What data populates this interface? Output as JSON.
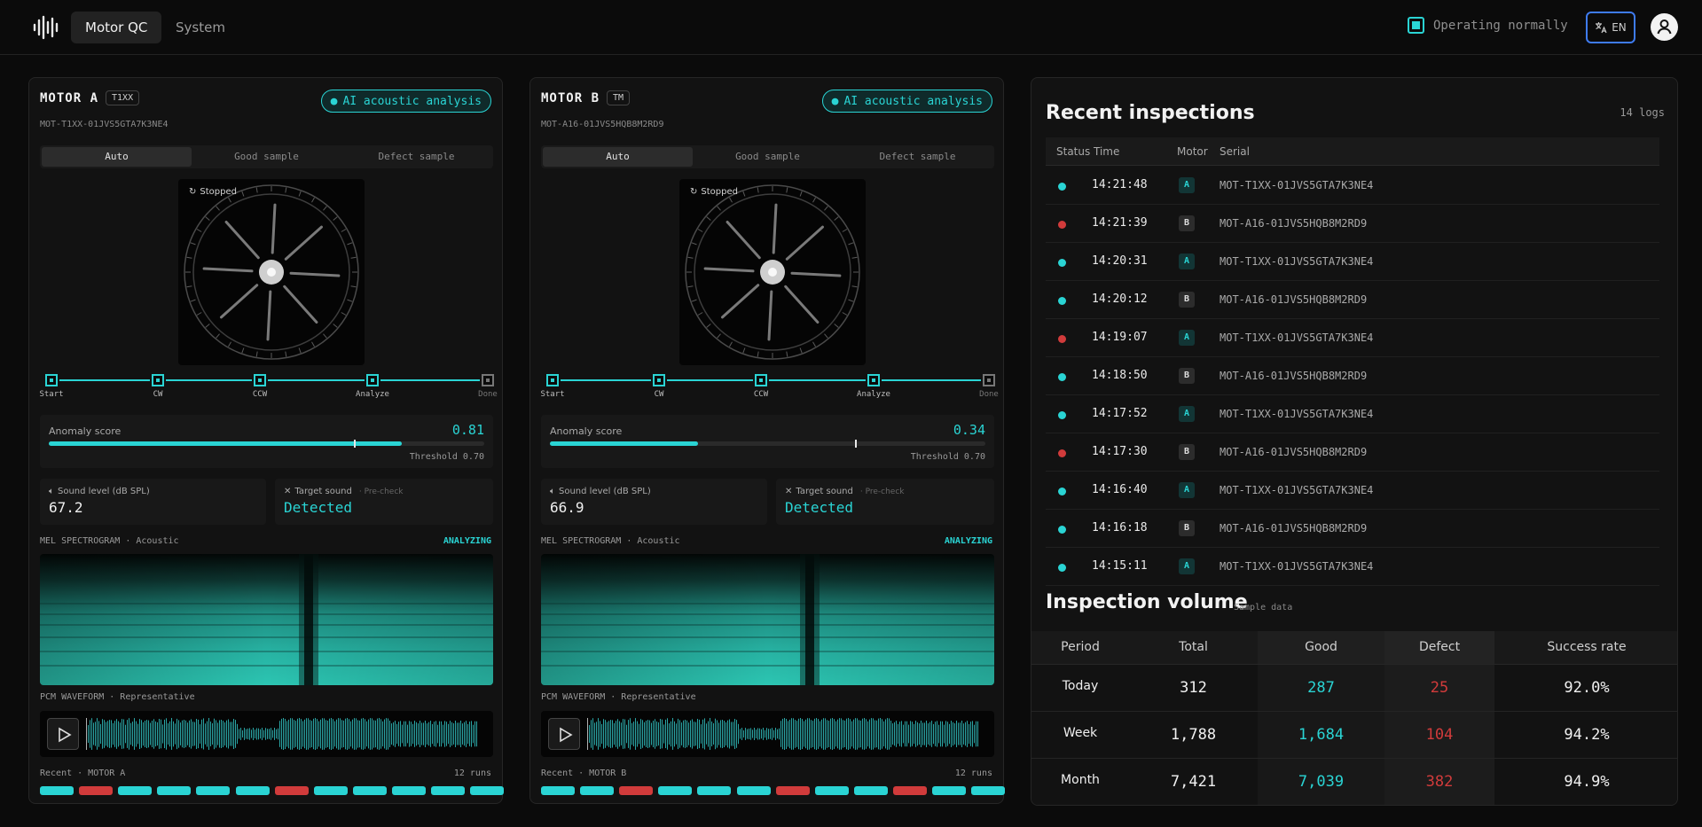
{
  "nav": {
    "tabs": [
      "Motor QC",
      "System"
    ]
  },
  "status": {
    "text": "Operating normally",
    "color": "#2ad4d4"
  },
  "lang": {
    "label": "EN"
  },
  "colors": {
    "accent": "#2ad4d4",
    "defect": "#d13b3b",
    "good": "#2ad4d4"
  },
  "motors": [
    {
      "title": "MOTOR A",
      "tag": "T1XX",
      "ai_badge": "AI acoustic analysis",
      "serial": "MOT-T1XX-01JVS5GTA7K3NE4",
      "modes": [
        "Auto",
        "Good sample",
        "Defect sample"
      ],
      "active_mode": "Auto",
      "rotor_state": "Stopped",
      "steps": [
        "Start",
        "CW",
        "CCW",
        "Analyze",
        "Done"
      ],
      "anomaly_label": "Anomaly score",
      "anomaly_score": "0.81",
      "anomaly_fraction": 0.81,
      "threshold_label": "Threshold 0.70",
      "threshold": 0.7,
      "sound_label": "Sound level (dB SPL)",
      "sound_value": "67.2",
      "target_label": "Target sound",
      "target_sub": "· Pre-check",
      "target_value": "Detected",
      "spectro_label": "MEL SPECTROGRAM · Acoustic",
      "spectro_status": "ANALYZING",
      "wave_label": "PCM WAVEFORM · Representative",
      "recent_label": "Recent · MOTOR A",
      "runs_label": "12 runs",
      "runs": [
        "good",
        "defect",
        "good",
        "good",
        "good",
        "good",
        "defect",
        "good",
        "good",
        "good",
        "good",
        "good"
      ]
    },
    {
      "title": "MOTOR B",
      "tag": "TM",
      "ai_badge": "AI acoustic analysis",
      "serial": "MOT-A16-01JVS5HQB8M2RD9",
      "modes": [
        "Auto",
        "Good sample",
        "Defect sample"
      ],
      "active_mode": "Auto",
      "rotor_state": "Stopped",
      "steps": [
        "Start",
        "CW",
        "CCW",
        "Analyze",
        "Done"
      ],
      "anomaly_label": "Anomaly score",
      "anomaly_score": "0.34",
      "anomaly_fraction": 0.34,
      "threshold_label": "Threshold 0.70",
      "threshold": 0.7,
      "sound_label": "Sound level (dB SPL)",
      "sound_value": "66.9",
      "target_label": "Target sound",
      "target_sub": "· Pre-check",
      "target_value": "Detected",
      "spectro_label": "MEL SPECTROGRAM · Acoustic",
      "spectro_status": "ANALYZING",
      "wave_label": "PCM WAVEFORM · Representative",
      "recent_label": "Recent · MOTOR B",
      "runs_label": "12 runs",
      "runs": [
        "good",
        "good",
        "defect",
        "good",
        "good",
        "good",
        "defect",
        "good",
        "good",
        "defect",
        "good",
        "good"
      ]
    }
  ],
  "inspections": {
    "title": "Recent inspections",
    "count": "14 logs",
    "headers": [
      "Status",
      "Time",
      "Motor",
      "Serial"
    ],
    "rows": [
      {
        "status": "good",
        "time": "14:21:48",
        "motor": "A",
        "serial": "MOT-T1XX-01JVS5GTA7K3NE4"
      },
      {
        "status": "defect",
        "time": "14:21:39",
        "motor": "B",
        "serial": "MOT-A16-01JVS5HQB8M2RD9"
      },
      {
        "status": "good",
        "time": "14:20:31",
        "motor": "A",
        "serial": "MOT-T1XX-01JVS5GTA7K3NE4"
      },
      {
        "status": "good",
        "time": "14:20:12",
        "motor": "B",
        "serial": "MOT-A16-01JVS5HQB8M2RD9"
      },
      {
        "status": "defect",
        "time": "14:19:07",
        "motor": "A",
        "serial": "MOT-T1XX-01JVS5GTA7K3NE4"
      },
      {
        "status": "good",
        "time": "14:18:50",
        "motor": "B",
        "serial": "MOT-A16-01JVS5HQB8M2RD9"
      },
      {
        "status": "good",
        "time": "14:17:52",
        "motor": "A",
        "serial": "MOT-T1XX-01JVS5GTA7K3NE4"
      },
      {
        "status": "defect",
        "time": "14:17:30",
        "motor": "B",
        "serial": "MOT-A16-01JVS5HQB8M2RD9"
      },
      {
        "status": "good",
        "time": "14:16:40",
        "motor": "A",
        "serial": "MOT-T1XX-01JVS5GTA7K3NE4"
      },
      {
        "status": "good",
        "time": "14:16:18",
        "motor": "B",
        "serial": "MOT-A16-01JVS5HQB8M2RD9"
      },
      {
        "status": "good",
        "time": "14:15:11",
        "motor": "A",
        "serial": "MOT-T1XX-01JVS5GTA7K3NE4"
      }
    ]
  },
  "volume": {
    "title": "Inspection volume",
    "subtitle": "Sample data",
    "headers": [
      "Period",
      "Total",
      "Good",
      "Defect",
      "Success rate"
    ],
    "rows": [
      {
        "period": "Today",
        "total": "312",
        "good": "287",
        "defect": "25",
        "rate": "92.0%"
      },
      {
        "period": "Week",
        "total": "1,788",
        "good": "1,684",
        "defect": "104",
        "rate": "94.2%"
      },
      {
        "period": "Month",
        "total": "7,421",
        "good": "7,039",
        "defect": "382",
        "rate": "94.9%"
      }
    ]
  }
}
